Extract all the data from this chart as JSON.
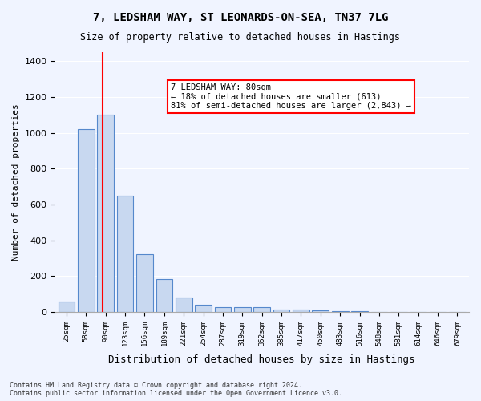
{
  "title1": "7, LEDSHAM WAY, ST LEONARDS-ON-SEA, TN37 7LG",
  "title2": "Size of property relative to detached houses in Hastings",
  "xlabel": "Distribution of detached houses by size in Hastings",
  "ylabel": "Number of detached properties",
  "categories": [
    "25sqm",
    "58sqm",
    "90sqm",
    "123sqm",
    "156sqm",
    "189sqm",
    "221sqm",
    "254sqm",
    "287sqm",
    "319sqm",
    "352sqm",
    "385sqm",
    "417sqm",
    "450sqm",
    "483sqm",
    "516sqm",
    "548sqm",
    "581sqm",
    "614sqm",
    "646sqm",
    "679sqm"
  ],
  "values": [
    60,
    1020,
    1100,
    650,
    320,
    185,
    80,
    40,
    25,
    25,
    25,
    15,
    15,
    10,
    5,
    5,
    0,
    0,
    0,
    0,
    0
  ],
  "bar_color": "#c8d8f0",
  "bar_edge_color": "#5588cc",
  "red_line_x": 1.85,
  "annotation_text": "7 LEDSHAM WAY: 80sqm\n← 18% of detached houses are smaller (613)\n81% of semi-detached houses are larger (2,843) →",
  "annotation_box_color": "white",
  "annotation_box_edge": "red",
  "ylim": [
    0,
    1450
  ],
  "yticks": [
    0,
    200,
    400,
    600,
    800,
    1000,
    1200,
    1400
  ],
  "footnote": "Contains HM Land Registry data © Crown copyright and database right 2024.\nContains public sector information licensed under the Open Government Licence v3.0.",
  "bg_color": "#f0f4ff",
  "grid_color": "#ffffff"
}
